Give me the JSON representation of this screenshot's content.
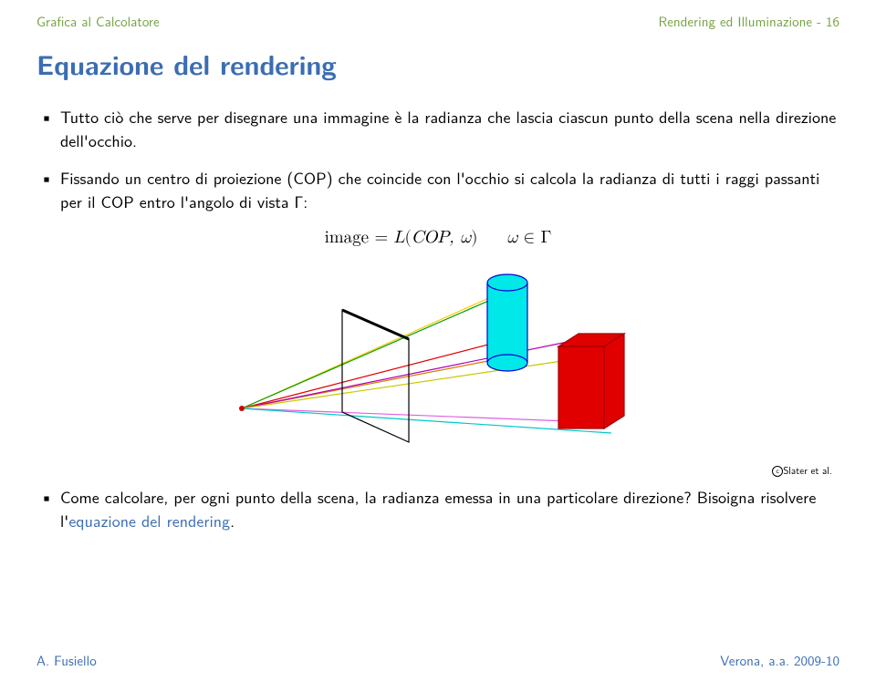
{
  "header": {
    "left": "Grafica al Calcolatore",
    "right": "Rendering ed Illuminazione - 16"
  },
  "title": "Equazione del rendering",
  "bullets": {
    "b1": "Tutto ciò che serve per disegnare una immagine è la radianza che lascia ciascun punto della scena nella direzione dell'occhio.",
    "b2": "Fissando un centro di proiezione (COP) che coincide con l'occhio si calcola la radianza di tutti i raggi passanti per il COP entro l'angolo di vista Γ:",
    "b3a": "Come calcolare, per ogni punto della scena, la radianza emessa in una particolare direzione? Bisoigna risolvere l'",
    "b3b": "equazione del rendering",
    "b3c": "."
  },
  "equation": {
    "lhs": "image",
    "eq": "=",
    "L": "L",
    "open": "(",
    "cop": "COP,",
    "omega1": "ω",
    "close": ")",
    "sep": "    ",
    "omega2": "ω",
    "in": "∈",
    "gamma": "Γ"
  },
  "credit": "Slater et al.",
  "footer": {
    "left": "A. Fusiello",
    "right": "Verona, a.a. 2009-10"
  },
  "figure": {
    "colors": {
      "cyl_fill": "#00e8e8",
      "cyl_stroke": "#0000d8",
      "box_fill": "#e00000",
      "box_stroke": "#a00000",
      "plane_stroke": "#000000",
      "plane_top": "#000000",
      "cop_dot": "#d00000"
    },
    "rays": [
      "#ffc800",
      "#00a000",
      "#e00000",
      "#d97a00",
      "#b000b0",
      "#c8c800",
      "#e060e0",
      "#00c8c8"
    ]
  }
}
